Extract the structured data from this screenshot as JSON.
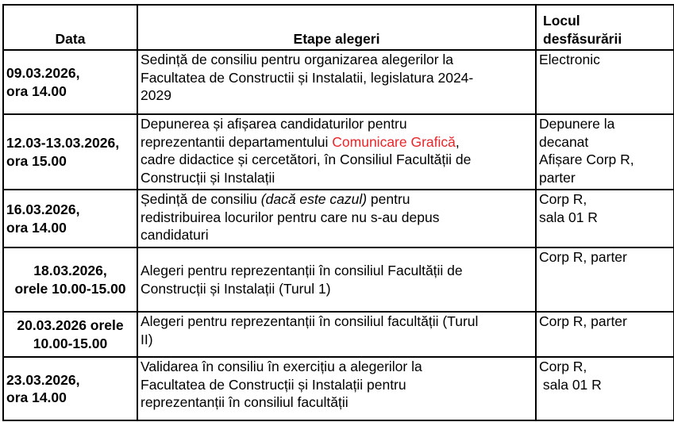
{
  "header": {
    "date": "Data",
    "stage": "Etape alegeri",
    "place": [
      "Locul",
      "desfăsurării"
    ]
  },
  "rows": [
    {
      "date": [
        "09.03.2026,",
        "ora 14.00"
      ],
      "stage": [
        "Sedință de consiliu pentru organizarea alegerilor la",
        "Facultatea de Constructii și Instalatii, legislatura 2024-",
        "2029"
      ],
      "place": [
        "Electronic"
      ]
    },
    {
      "date": [
        "12.03-13.03.2026,",
        "ora 15.00"
      ],
      "stage": [
        "Depunerea și afișarea candidaturilor pentru",
        "reprezentantii departamentului ",
        "Comunicare Grafică",
        ",",
        "cadre didactice și cercetători, în Consiliul Facultății de",
        "Construcții și Instalații"
      ],
      "place": [
        "Depunere la",
        "decanat",
        "Afișare Corp R,",
        "parter"
      ]
    },
    {
      "date": [
        "16.03.2026,",
        "ora 14.00"
      ],
      "stage": [
        "Ședință de consiliu ",
        "(dacă este cazul)",
        " pentru",
        "redistribuirea locurilor pentru care nu s-au depus",
        "candidaturi"
      ],
      "place": [
        "Corp R,",
        "sala 01 R"
      ]
    },
    {
      "date": [
        "18.03.2026,",
        "orele 10.00-15.00"
      ],
      "stage": [
        "Alegeri pentru reprezentanții în consiliul Facultății de",
        "Construcții și Instalații (Turul 1)"
      ],
      "place": [
        "Corp R, parter"
      ]
    },
    {
      "date": [
        "20.03.2026 orele",
        "10.00-15.00"
      ],
      "stage": [
        "Alegeri pentru reprezentanții în consiliul facultății (Turul",
        "II)"
      ],
      "place": [
        "Corp R, parter"
      ]
    },
    {
      "date": [
        "23.03.2026,",
        "ora 14.00"
      ],
      "stage": [
        "Validarea în consiliu în exercițiu a alegerilor  la",
        "Facultatea de Construcții și Instalații pentru",
        "reprezentanții în consiliul facultății"
      ],
      "place": [
        "Corp R,",
        " sala 01 R"
      ]
    }
  ],
  "colors": {
    "highlight": "#e8262a"
  }
}
